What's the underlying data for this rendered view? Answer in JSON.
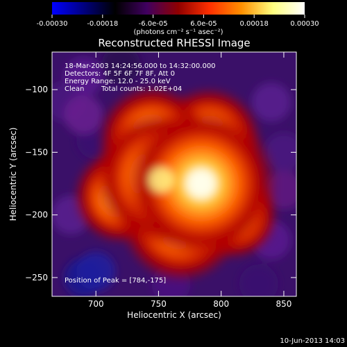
{
  "chart_data": {
    "type": "heatmap",
    "title": "Reconstructed RHESSI Image",
    "xlabel": "Heliocentric X (arcsec)",
    "ylabel": "Heliocentric Y (arcsec)",
    "xlim": [
      665,
      860
    ],
    "ylim": [
      -265,
      -70
    ],
    "xticks": [
      700,
      750,
      800,
      850
    ],
    "yticks": [
      -100,
      -150,
      -200,
      -250
    ],
    "colorbar": {
      "ticks": [
        "-0.00030",
        "-0.00018",
        "-6.0e-05",
        "6.0e-05",
        "0.00018",
        "0.00030"
      ],
      "tick_values": [
        -0.0003,
        -0.00018,
        -6e-05,
        6e-05,
        0.00018,
        0.0003
      ],
      "range": [
        -0.0003,
        0.0003
      ],
      "unit_label": "(photons cm⁻² s⁻¹ asec⁻²)",
      "colors": [
        "#0000ff",
        "#000080",
        "#000000",
        "#400060",
        "#900000",
        "#ff3000",
        "#ff9000",
        "#ffff80",
        "#ffffff"
      ]
    },
    "annotations": {
      "time_range": "18-Mar-2003 14:24:56.000 to 14:32:00.000",
      "detectors": "Detectors: 4F 5F 6F 7F 8F, Att 0",
      "energy": "Energy Range: 12.0 - 25.0 keV",
      "method": "Clean",
      "counts": "Total counts: 1.02E+04",
      "peak": "Position of Peak = [784,-175]"
    },
    "peak": [
      784,
      -175
    ],
    "sources": [
      {
        "x": 784,
        "y": -175,
        "intensity": 0.00029
      },
      {
        "x": 752,
        "y": -170,
        "intensity": 0.00024
      },
      {
        "x": 768,
        "y": -205,
        "intensity": 0.0002
      },
      {
        "x": 745,
        "y": -140,
        "intensity": 0.00016
      },
      {
        "x": 790,
        "y": -140,
        "intensity": 0.00015
      },
      {
        "x": 720,
        "y": -185,
        "intensity": 0.00012
      },
      {
        "x": 810,
        "y": -200,
        "intensity": 0.0001
      }
    ]
  },
  "footer": {
    "timestamp": "10-Jun-2013 14:03"
  }
}
